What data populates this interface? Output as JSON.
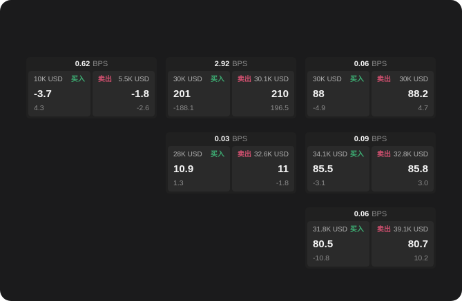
{
  "labels": {
    "bps_unit": "BPS",
    "buy": "买入",
    "sell": "卖出"
  },
  "colors": {
    "canvas": "#1b1b1c",
    "card": "#202020",
    "panel": "#2a2a2a",
    "text": "#f5f5f5",
    "label": "#b0b0b0",
    "dim": "#8b8b8b",
    "buy": "#3dae73",
    "sell": "#ce4f6e"
  },
  "cards": [
    {
      "col": 1,
      "row": 1,
      "bps": "0.62",
      "buy": {
        "amount": "10K USD",
        "value": "-3.7",
        "sub": "4.3"
      },
      "sell": {
        "amount": "5.5K USD",
        "value": "-1.8",
        "sub": "-2.6"
      }
    },
    {
      "col": 2,
      "row": 1,
      "bps": "2.92",
      "buy": {
        "amount": "30K USD",
        "value": "201",
        "sub": "-188.1"
      },
      "sell": {
        "amount": "30.1K USD",
        "value": "210",
        "sub": "196.5"
      }
    },
    {
      "col": 3,
      "row": 1,
      "bps": "0.06",
      "buy": {
        "amount": "30K USD",
        "value": "88",
        "sub": "-4.9"
      },
      "sell": {
        "amount": "30K USD",
        "value": "88.2",
        "sub": "4.7"
      }
    },
    {
      "col": 2,
      "row": 2,
      "bps": "0.03",
      "buy": {
        "amount": "28K USD",
        "value": "10.9",
        "sub": "1.3"
      },
      "sell": {
        "amount": "32.6K USD",
        "value": "11",
        "sub": "-1.8"
      }
    },
    {
      "col": 3,
      "row": 2,
      "bps": "0.09",
      "buy": {
        "amount": "34.1K USD",
        "value": "85.5",
        "sub": "-3.1"
      },
      "sell": {
        "amount": "32.8K USD",
        "value": "85.8",
        "sub": "3.0"
      }
    },
    {
      "col": 3,
      "row": 3,
      "bps": "0.06",
      "buy": {
        "amount": "31.8K USD",
        "value": "80.5",
        "sub": "-10.8"
      },
      "sell": {
        "amount": "39.1K USD",
        "value": "80.7",
        "sub": "10.2"
      }
    }
  ]
}
